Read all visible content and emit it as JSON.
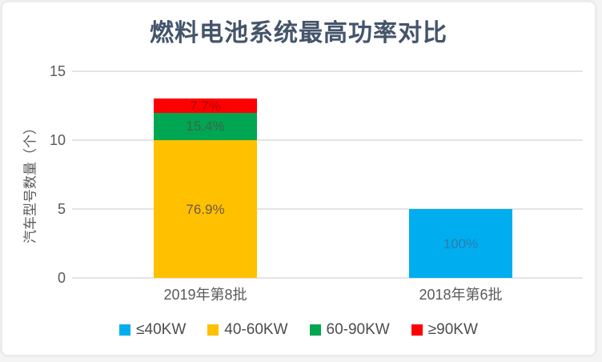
{
  "chart_data": {
    "type": "bar",
    "subtype": "stacked",
    "title": "燃料电池系统最高功率对比",
    "ylabel": "汽车型号数量（个）",
    "xlabel": "",
    "ylim": [
      0,
      15
    ],
    "yticks": [
      0,
      5,
      10,
      15
    ],
    "grid": true,
    "legend_position": "bottom",
    "categories": [
      "2019年第8批",
      "2018年第6批"
    ],
    "series": [
      {
        "name": "≤40KW",
        "color": "#00aeef",
        "label_color": "#2b7cab",
        "values": [
          0,
          5
        ],
        "labels": [
          "",
          "100%"
        ]
      },
      {
        "name": "40-60KW",
        "color": "#ffc000",
        "label_color": "#6b5846",
        "values": [
          10,
          0
        ],
        "labels": [
          "76.9%",
          ""
        ]
      },
      {
        "name": "60-90KW",
        "color": "#00a651",
        "label_color": "#40634f",
        "values": [
          2,
          0
        ],
        "labels": [
          "15.4%",
          ""
        ]
      },
      {
        "name": "≥90KW",
        "color": "#fe0000",
        "label_color": "#b30000",
        "values": [
          1,
          0
        ],
        "labels": [
          "7.7%",
          ""
        ]
      }
    ],
    "colors": {
      "title": "#44546a",
      "axis_text": "#595959",
      "gridline": "#e4e4e4"
    }
  }
}
